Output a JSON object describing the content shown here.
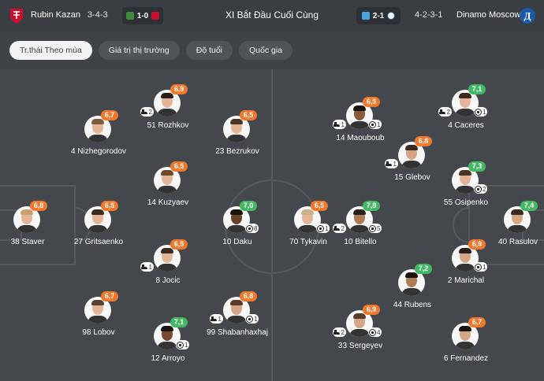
{
  "header": {
    "home_team": "Rubin Kazan",
    "home_formation": "3-4-3",
    "home_result": "1-0",
    "title": "XI Bắt Đầu Cuối Cùng",
    "away_result": "2-1",
    "away_formation": "4-2-3-1",
    "away_team": "Dinamo Moscow",
    "colors": {
      "rubin": "#c8102e",
      "dinamo": "#1a5aa8",
      "rating_orange": "#f1782a",
      "rating_green": "#43b862"
    }
  },
  "tabs": [
    {
      "label": "Tr.thái Theo mùa",
      "active": true
    },
    {
      "label": "Giá trị thị trường",
      "active": false
    },
    {
      "label": "Độ tuổi",
      "active": false
    },
    {
      "label": "Quốc gia",
      "active": false
    }
  ],
  "players": [
    {
      "name": "38 Staver",
      "rating": "6,8",
      "rating_color": "orange"
    },
    {
      "name": "27 Gritsaenko",
      "rating": "6,5",
      "rating_color": "orange"
    },
    {
      "name": "98 Lobov",
      "rating": "6,7",
      "rating_color": "orange"
    },
    {
      "name": "4 Nizhegorodov",
      "rating": "6,7",
      "rating_color": "orange"
    },
    {
      "name": "51 Rozhkov",
      "rating": "6,9",
      "rating_color": "orange",
      "assist": "2"
    },
    {
      "name": "14 Kuzyaev",
      "rating": "6,5",
      "rating_color": "orange"
    },
    {
      "name": "8 Jocic",
      "rating": "6,5",
      "rating_color": "orange",
      "assist": "1"
    },
    {
      "name": "12 Arroyo",
      "rating": "7,1",
      "rating_color": "green",
      "goal": "1"
    },
    {
      "name": "23 Bezrukov",
      "rating": "6,5",
      "rating_color": "orange"
    },
    {
      "name": "10 Daku",
      "rating": "7,0",
      "rating_color": "green",
      "goal": "8"
    },
    {
      "name": "99 Shabanhaxhaj",
      "rating": "6,8",
      "rating_color": "orange",
      "assist": "1",
      "goal": "1"
    },
    {
      "name": "70 Tykavin",
      "rating": "6,5",
      "rating_color": "orange",
      "goal": "1"
    },
    {
      "name": "14 Maouboub",
      "rating": "6,5",
      "rating_color": "orange",
      "assist": "1",
      "goal": "1"
    },
    {
      "name": "10 Bitello",
      "rating": "7,8",
      "rating_color": "green",
      "assist": "2",
      "goal": "5"
    },
    {
      "name": "33 Sergeyev",
      "rating": "6,9",
      "rating_color": "orange",
      "assist": "2",
      "goal": "4"
    },
    {
      "name": "15 Glebov",
      "rating": "6,8",
      "rating_color": "orange",
      "assist": "1"
    },
    {
      "name": "44 Rubens",
      "rating": "7,2",
      "rating_color": "green"
    },
    {
      "name": "4 Caceres",
      "rating": "7,1",
      "rating_color": "green",
      "assist": "2",
      "goal": "1"
    },
    {
      "name": "55 Osipenko",
      "rating": "7,3",
      "rating_color": "green",
      "goal": "2"
    },
    {
      "name": "2 Marichal",
      "rating": "6,9",
      "rating_color": "orange",
      "goal": "1"
    },
    {
      "name": "6 Fernandez",
      "rating": "6,7",
      "rating_color": "orange"
    },
    {
      "name": "40 Rasulov",
      "rating": "7,4",
      "rating_color": "green"
    }
  ]
}
